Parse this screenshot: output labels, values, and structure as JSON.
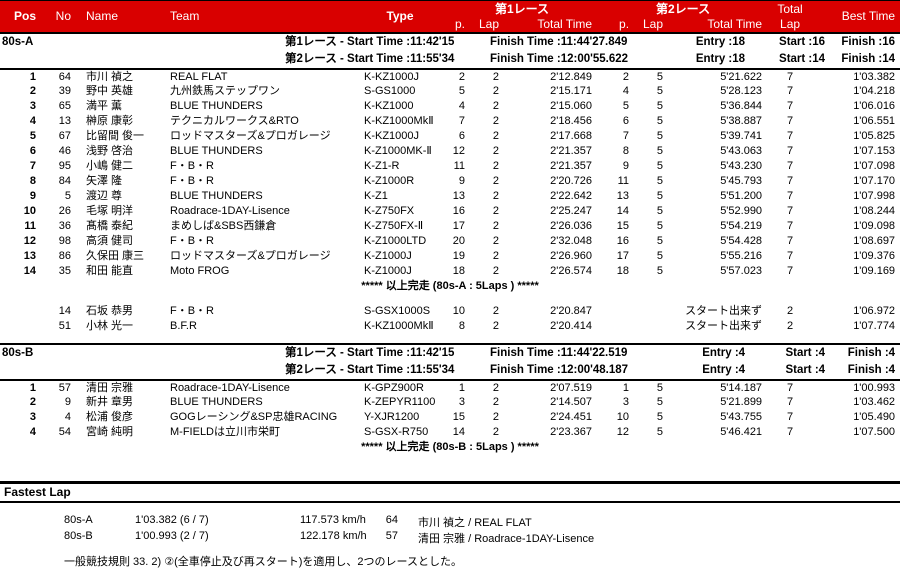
{
  "title_bar": {
    "pos": "Pos",
    "no": "No",
    "name": "Name",
    "team": "Team",
    "type": "Type",
    "race1": "第1レース",
    "race2": "第2レース",
    "p": "p.",
    "lap": "Lap",
    "total_time": "Total Time",
    "total": "Total",
    "total_lap_sub": "Lap",
    "best_time": "Best Time"
  },
  "sections": [
    {
      "label": "80s-A",
      "race_info": [
        {
          "start": "第1レース - Start Time :11:42'15",
          "finish": "Finish Time :11:44'27.849",
          "entry": "Entry :18",
          "start_count": "Start :16",
          "finish_count": "Finish :16"
        },
        {
          "start": "第2レース - Start Time :11:55'34",
          "finish": "Finish Time :12:00'55.622",
          "entry": "Entry :18",
          "start_count": "Start :14",
          "finish_count": "Finish :14"
        }
      ],
      "rows": [
        [
          "1",
          "64",
          "市川 禎之",
          "REAL FLAT",
          "K-KZ1000J",
          "2",
          "2",
          "2'12.849",
          "2",
          "5",
          "5'21.622",
          "7",
          "1'03.382"
        ],
        [
          "2",
          "39",
          "野中 英雄",
          "九州鉄馬ステップワン",
          "S-GS1000",
          "5",
          "2",
          "2'15.171",
          "4",
          "5",
          "5'28.123",
          "7",
          "1'04.218"
        ],
        [
          "3",
          "65",
          "満平 薫",
          "BLUE THUNDERS",
          "K-KZ1000",
          "4",
          "2",
          "2'15.060",
          "5",
          "5",
          "5'36.844",
          "7",
          "1'06.016"
        ],
        [
          "4",
          "13",
          "榊原 康彰",
          "テクニカルワークス&RTO",
          "K-KZ1000MkⅡ",
          "7",
          "2",
          "2'18.456",
          "6",
          "5",
          "5'38.887",
          "7",
          "1'06.551"
        ],
        [
          "5",
          "67",
          "比留間 俊一",
          "ロッドマスターズ&プロガレージ",
          "K-KZ1000J",
          "6",
          "2",
          "2'17.668",
          "7",
          "5",
          "5'39.741",
          "7",
          "1'05.825"
        ],
        [
          "6",
          "46",
          "浅野 啓治",
          "BLUE THUNDERS",
          "K-Z1000MK-Ⅱ",
          "12",
          "2",
          "2'21.357",
          "8",
          "5",
          "5'43.063",
          "7",
          "1'07.153"
        ],
        [
          "7",
          "95",
          "小嶋 健二",
          "F・B・R",
          "K-Z1-R",
          "11",
          "2",
          "2'21.357",
          "9",
          "5",
          "5'43.230",
          "7",
          "1'07.098"
        ],
        [
          "8",
          "84",
          "矢澤 隆",
          "F・B・R",
          "K-Z1000R",
          "9",
          "2",
          "2'20.726",
          "11",
          "5",
          "5'45.793",
          "7",
          "1'07.170"
        ],
        [
          "9",
          "5",
          "渡辺 尊",
          "BLUE THUNDERS",
          "K-Z1",
          "13",
          "2",
          "2'22.642",
          "13",
          "5",
          "5'51.200",
          "7",
          "1'07.998"
        ],
        [
          "10",
          "26",
          "毛塚 明洋",
          "Roadrace-1DAY-Lisence",
          "K-Z750FX",
          "16",
          "2",
          "2'25.247",
          "14",
          "5",
          "5'52.990",
          "7",
          "1'08.244"
        ],
        [
          "11",
          "36",
          "髙橋 泰紀",
          "まめしば&SBS西鎌倉",
          "K-Z750FX-Ⅱ",
          "17",
          "2",
          "2'26.036",
          "15",
          "5",
          "5'54.219",
          "7",
          "1'09.098"
        ],
        [
          "12",
          "98",
          "高須 健司",
          "F・B・R",
          "K-Z1000LTD",
          "20",
          "2",
          "2'32.048",
          "16",
          "5",
          "5'54.428",
          "7",
          "1'08.697"
        ],
        [
          "13",
          "86",
          "久保田 康三",
          "ロッドマスターズ&プロガレージ",
          "K-Z1000J",
          "19",
          "2",
          "2'26.960",
          "17",
          "5",
          "5'55.216",
          "7",
          "1'09.376"
        ],
        [
          "14",
          "35",
          "和田 能直",
          "Moto FROG",
          "K-Z1000J",
          "18",
          "2",
          "2'26.574",
          "18",
          "5",
          "5'57.023",
          "7",
          "1'09.169"
        ]
      ],
      "note": "***** 以上完走 (80s-A : 5Laps ) *****",
      "dns_rows": [
        [
          "",
          "14",
          "石坂 恭男",
          "F・B・R",
          "S-GSX1000S",
          "10",
          "2",
          "2'20.847",
          "スタート出来ず",
          "2",
          "1'06.972"
        ],
        [
          "",
          "51",
          "小林 光一",
          "B.F.R",
          "K-KZ1000MkⅡ",
          "8",
          "2",
          "2'20.414",
          "スタート出来ず",
          "2",
          "1'07.774"
        ]
      ]
    },
    {
      "label": "80s-B",
      "race_info": [
        {
          "start": "第1レース - Start Time :11:42'15",
          "finish": "Finish Time :11:44'22.519",
          "entry": "Entry :4",
          "start_count": "Start :4",
          "finish_count": "Finish :4"
        },
        {
          "start": "第2レース - Start Time :11:55'34",
          "finish": "Finish Time :12:00'48.187",
          "entry": "Entry :4",
          "start_count": "Start :4",
          "finish_count": "Finish :4"
        }
      ],
      "rows": [
        [
          "1",
          "57",
          "清田 宗雅",
          "Roadrace-1DAY-Lisence",
          "K-GPZ900R",
          "1",
          "2",
          "2'07.519",
          "1",
          "5",
          "5'14.187",
          "7",
          "1'00.993"
        ],
        [
          "2",
          "9",
          "新井 章男",
          "BLUE THUNDERS",
          "K-ZEPYR1100",
          "3",
          "2",
          "2'14.507",
          "3",
          "5",
          "5'21.899",
          "7",
          "1'03.462"
        ],
        [
          "3",
          "4",
          "松浦 俊彦",
          "GOGレーシング&SP忠雄RACING",
          "Y-XJR1200",
          "15",
          "2",
          "2'24.451",
          "10",
          "5",
          "5'43.755",
          "7",
          "1'05.490"
        ],
        [
          "4",
          "54",
          "宮崎 純明",
          "M-FIELDは立川市栄町",
          "S-GSX-R750",
          "14",
          "2",
          "2'23.367",
          "12",
          "5",
          "5'46.421",
          "7",
          "1'07.500"
        ]
      ],
      "note": "***** 以上完走 (80s-B : 5Laps ) *****",
      "dns_rows": []
    }
  ],
  "fastest_lap": {
    "title": "Fastest Lap",
    "rows": [
      [
        "80s-A",
        "1'03.382 (6 / 7)",
        "117.573 km/h",
        "64",
        "市川 禎之 / REAL FLAT"
      ],
      [
        "80s-B",
        "1'00.993 (2 / 7)",
        "122.178 km/h",
        "57",
        "清田 宗雅 / Roadrace-1DAY-Lisence"
      ]
    ]
  },
  "footer_note": "一般競技規則 33. 2) ②(全車停止及び再スタート)を適用し、2つのレースとした。"
}
